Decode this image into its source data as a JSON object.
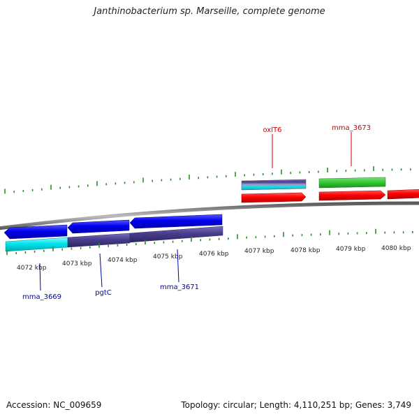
{
  "title": "Janthinobacterium sp. Marseille, complete genome",
  "footer": {
    "accession": "Accession: NC_009659",
    "summary": "Topology: circular; Length: 4,110,251 bp; Genes: 3,749"
  },
  "colors": {
    "forward_gene": "#ff0000",
    "forward_cds_green": "#33cc33",
    "forward_label": "#cc0000",
    "reverse_gene": "#0000ee",
    "reverse_label": "#0000aa",
    "cyan_feature": "#00e5ee",
    "slate_feature": "#483d8b",
    "backbone": "#8c8c8c",
    "tick": "#2e8b2e"
  },
  "kbp_ticks": [
    {
      "label": "4072 kbp",
      "pos": 4072
    },
    {
      "label": "4073 kbp",
      "pos": 4073
    },
    {
      "label": "4074 kbp",
      "pos": 4074
    },
    {
      "label": "4075 kbp",
      "pos": 4075
    },
    {
      "label": "4076 kbp",
      "pos": 4076
    },
    {
      "label": "4077 kbp",
      "pos": 4077
    },
    {
      "label": "4078 kbp",
      "pos": 4078
    },
    {
      "label": "4079 kbp",
      "pos": 4079
    },
    {
      "label": "4080 kbp",
      "pos": 4080
    }
  ],
  "gene_labels": [
    {
      "name": "oxlT6",
      "strand": "forward"
    },
    {
      "name": "mma_3673",
      "strand": "forward"
    },
    {
      "name": "mma_3669",
      "strand": "reverse"
    },
    {
      "name": "pgtC",
      "strand": "reverse"
    },
    {
      "name": "mma_3671",
      "strand": "reverse"
    }
  ]
}
